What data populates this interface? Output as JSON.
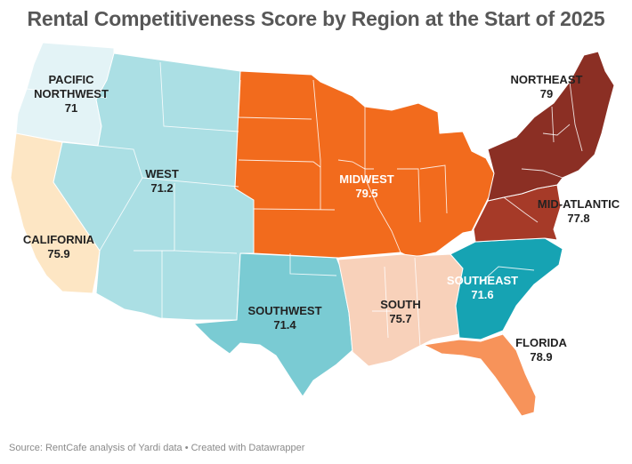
{
  "title": "Rental Competitiveness Score by Region at the Start of 2025",
  "source": "Source: RentCafe analysis of Yardi data • Created with Datawrapper",
  "map_data": {
    "type": "choropleth",
    "regions": [
      {
        "id": "pacific-northwest",
        "name_lines": [
          "PACIFIC",
          "NORTHWEST"
        ],
        "score": "71",
        "color": "#e3f3f6",
        "text_color": "#222222"
      },
      {
        "id": "california",
        "name_lines": [
          "CALIFORNIA"
        ],
        "score": "75.9",
        "color": "#fde6c4",
        "text_color": "#222222"
      },
      {
        "id": "west",
        "name_lines": [
          "WEST"
        ],
        "score": "71.2",
        "color": "#abdfe4",
        "text_color": "#222222"
      },
      {
        "id": "southwest",
        "name_lines": [
          "SOUTHWEST"
        ],
        "score": "71.4",
        "color": "#7acbd3",
        "text_color": "#222222"
      },
      {
        "id": "midwest",
        "name_lines": [
          "MIDWEST"
        ],
        "score": "79.5",
        "color": "#f26b1d",
        "text_color": "#ffffff"
      },
      {
        "id": "south",
        "name_lines": [
          "SOUTH"
        ],
        "score": "75.7",
        "color": "#f8d1ba",
        "text_color": "#222222"
      },
      {
        "id": "southeast",
        "name_lines": [
          "SOUTHEAST"
        ],
        "score": "71.6",
        "color": "#16a3b3",
        "text_color": "#ffffff"
      },
      {
        "id": "florida",
        "name_lines": [
          "FLORIDA"
        ],
        "score": "78.9",
        "color": "#f7935a",
        "text_color": "#222222"
      },
      {
        "id": "northeast",
        "name_lines": [
          "NORTHEAST"
        ],
        "score": "79",
        "color": "#8b2f24",
        "text_color": "#222222"
      },
      {
        "id": "mid-atlantic",
        "name_lines": [
          "MID-ATLANTIC"
        ],
        "score": "77.8",
        "color": "#a63a28",
        "text_color": "#222222"
      }
    ]
  }
}
